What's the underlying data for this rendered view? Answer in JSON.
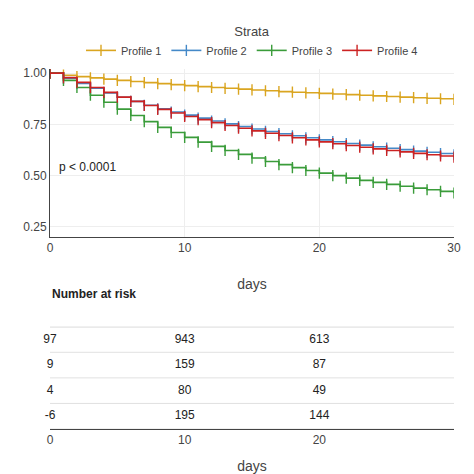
{
  "chart_data": [
    {
      "type": "step",
      "legend_title": "Strata",
      "legend": "top",
      "xlabel": "days",
      "xlim": [
        0,
        30
      ],
      "xticks": [
        0,
        10,
        20,
        30
      ],
      "ylim": [
        0.2,
        1.02
      ],
      "yticks": [
        0.25,
        {
          "value": 0.5,
          "label": "0.50"
        },
        0.75,
        {
          "value": 1,
          "label": "1.00"
        }
      ],
      "grid": true,
      "marker": "line-ns",
      "x": [
        0,
        1,
        2,
        3,
        4,
        5,
        6,
        7,
        8,
        9,
        10,
        11,
        12,
        13,
        14,
        15,
        16,
        17,
        18,
        19,
        20,
        21,
        22,
        23,
        24,
        25,
        26,
        27,
        28,
        29,
        30
      ],
      "series": [
        {
          "name": "Profile 1",
          "color": "#DAA520",
          "values": [
            1.0,
            0.99,
            0.983,
            0.977,
            0.971,
            0.965,
            0.959,
            0.954,
            0.949,
            0.944,
            0.939,
            0.934,
            0.93,
            0.926,
            0.922,
            0.918,
            0.914,
            0.91,
            0.907,
            0.904,
            0.901,
            0.898,
            0.895,
            0.892,
            0.889,
            0.886,
            0.883,
            0.88,
            0.877,
            0.875,
            0.872
          ]
        },
        {
          "name": "Profile 2",
          "color": "#4489C8",
          "values": [
            1.0,
            0.975,
            0.95,
            0.926,
            0.903,
            0.882,
            0.862,
            0.843,
            0.826,
            0.81,
            0.795,
            0.78,
            0.766,
            0.752,
            0.739,
            0.727,
            0.715,
            0.704,
            0.694,
            0.684,
            0.674,
            0.665,
            0.656,
            0.648,
            0.64,
            0.633,
            0.626,
            0.619,
            0.613,
            0.607,
            0.601
          ]
        },
        {
          "name": "Profile 3",
          "color": "#3A9C3A",
          "values": [
            1.0,
            0.965,
            0.93,
            0.892,
            0.858,
            0.824,
            0.793,
            0.763,
            0.735,
            0.71,
            0.686,
            0.663,
            0.642,
            0.622,
            0.603,
            0.585,
            0.568,
            0.553,
            0.538,
            0.524,
            0.511,
            0.499,
            0.487,
            0.476,
            0.466,
            0.456,
            0.447,
            0.438,
            0.43,
            0.422,
            0.414
          ]
        },
        {
          "name": "Profile 4",
          "color": "#CC2222",
          "values": [
            1.0,
            0.978,
            0.955,
            0.93,
            0.906,
            0.883,
            0.862,
            0.842,
            0.823,
            0.805,
            0.788,
            0.773,
            0.758,
            0.744,
            0.731,
            0.718,
            0.706,
            0.695,
            0.684,
            0.674,
            0.664,
            0.655,
            0.646,
            0.638,
            0.63,
            0.622,
            0.615,
            0.608,
            0.601,
            0.595,
            0.589
          ]
        }
      ],
      "annotations": [
        {
          "text": "p < 0.0001",
          "x": 0.5,
          "y": 0.54
        }
      ]
    },
    {
      "type": "table",
      "title": "Number at risk",
      "xlabel": "days",
      "xlim": [
        0,
        30
      ],
      "xticks": [
        0,
        10,
        20
      ],
      "x": [
        0,
        10,
        20
      ],
      "series": [
        {
          "values": [
            97,
            943,
            613
          ]
        },
        {
          "values": [
            9,
            159,
            87
          ]
        },
        {
          "values": [
            4,
            80,
            49
          ]
        },
        {
          "values": [
            -6,
            195,
            144
          ]
        }
      ]
    }
  ]
}
